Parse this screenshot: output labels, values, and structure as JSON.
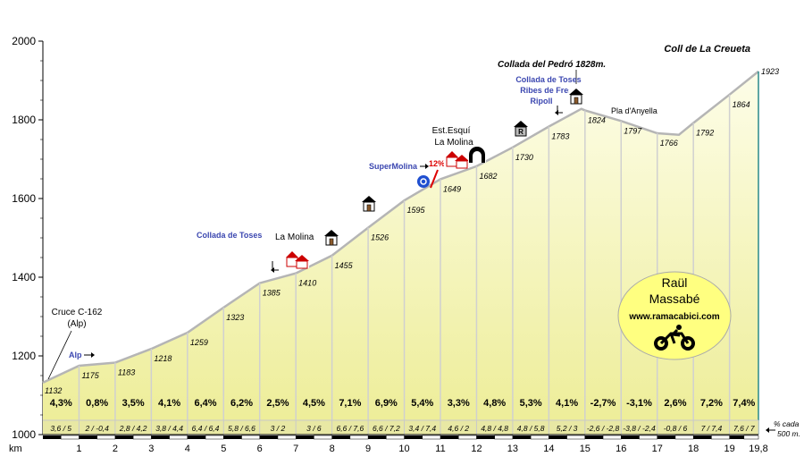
{
  "chart_data": {
    "type": "area",
    "title": "Coll de La Creueta",
    "xlabel": "km",
    "ylim": [
      1000,
      2000
    ],
    "xlim": [
      0,
      19.8
    ],
    "yticks": [
      1000,
      1200,
      1400,
      1600,
      1800,
      2000
    ],
    "km_labels": [
      "1",
      "2",
      "3",
      "4",
      "5",
      "6",
      "7",
      "8",
      "9",
      "10",
      "11",
      "12",
      "13",
      "14",
      "15",
      "16",
      "17",
      "18",
      "19",
      "19,8"
    ],
    "points": [
      {
        "km": 0,
        "alt": 1132,
        "label": "1132"
      },
      {
        "km": 1,
        "alt": 1175,
        "label": "1175"
      },
      {
        "km": 2,
        "alt": 1183,
        "label": "1183"
      },
      {
        "km": 3,
        "alt": 1218,
        "label": "1218"
      },
      {
        "km": 4,
        "alt": 1259,
        "label": "1259"
      },
      {
        "km": 5,
        "alt": 1323,
        "label": "1323"
      },
      {
        "km": 6,
        "alt": 1385,
        "label": "1385"
      },
      {
        "km": 7,
        "alt": 1410,
        "label": "1410"
      },
      {
        "km": 8,
        "alt": 1455,
        "label": "1455"
      },
      {
        "km": 9,
        "alt": 1526,
        "label": "1526"
      },
      {
        "km": 10,
        "alt": 1595,
        "label": "1595"
      },
      {
        "km": 11,
        "alt": 1649,
        "label": "1649"
      },
      {
        "km": 12,
        "alt": 1682,
        "label": "1682"
      },
      {
        "km": 13,
        "alt": 1730,
        "label": "1730"
      },
      {
        "km": 14,
        "alt": 1783,
        "label": "1783"
      },
      {
        "km": 15,
        "alt": 1824,
        "label": "1824"
      },
      {
        "km": 16,
        "alt": 1797,
        "label": "1797"
      },
      {
        "km": 17,
        "alt": 1766,
        "label": "1766"
      },
      {
        "km": 18,
        "alt": 1792,
        "label": "1792"
      },
      {
        "km": 19,
        "alt": 1864,
        "label": "1864"
      },
      {
        "km": 19.8,
        "alt": 1923,
        "label": "1923"
      }
    ],
    "profile_extra": [
      {
        "km": 14.9,
        "alt": 1828
      },
      {
        "km": 17.6,
        "alt": 1762
      }
    ],
    "gradients": [
      "4,3%",
      "0,8%",
      "3,5%",
      "4,1%",
      "6,4%",
      "6,2%",
      "2,5%",
      "4,5%",
      "7,1%",
      "6,9%",
      "5,4%",
      "3,3%",
      "4,8%",
      "5,3%",
      "4,1%",
      "-2,7%",
      "-3,1%",
      "2,6%",
      "7,2%",
      "7,4%"
    ],
    "half_gradients": [
      "3,6 / 5",
      "2 / -0,4",
      "2,8 / 4,2",
      "3,8 / 4,4",
      "6,4 / 6,4",
      "5,8 / 6,6",
      "3 / 2",
      "3 / 6",
      "6,6 / 7,6",
      "6,6 / 7,2",
      "3,4 / 7,4",
      "4,6 / 2",
      "4,8 / 4,8",
      "4,8 / 5,8",
      "5,2 / 3",
      "-2,6 / -2,8",
      "-3,8 / -2,4",
      "-0,8 / 6",
      "7 / 7,4",
      "7,6 / 7"
    ],
    "legend_note": [
      "% cada",
      "500 m."
    ],
    "colors": {
      "fill": "#f3f3a8",
      "fill_top": "#fbfbd6",
      "line": "#c8c8c8",
      "band": "#e9e9a0",
      "badge": "#ffff80",
      "blue": "#3b47b0",
      "red": "#dd0000"
    }
  },
  "annotations": {
    "cruce": [
      "Cruce C-162",
      "(Alp)"
    ],
    "alp": "Alp",
    "collada_toses_1": "Collada de Toses",
    "la_molina": "La Molina",
    "supermolina": "SuperMolina",
    "steep": "12%",
    "est_esqui": [
      "Est.Esquí",
      "La Molina"
    ],
    "collada_pedro": "Collada del Pedró 1828m.",
    "toses_junction": [
      "Collada de Toses",
      "Ribes de Freser",
      "Ripoll"
    ],
    "pla_anyella": "Pla d'Anyella"
  },
  "badge": {
    "line1": "Raül",
    "line2": "Massabé",
    "url": "www.ramacabici.com"
  },
  "icons": [
    "house-icon",
    "restaurant-icon",
    "refuge-icon",
    "tunnel-icon",
    "traffic-sign-icon",
    "bicycle-icon",
    "arrow-icon"
  ]
}
